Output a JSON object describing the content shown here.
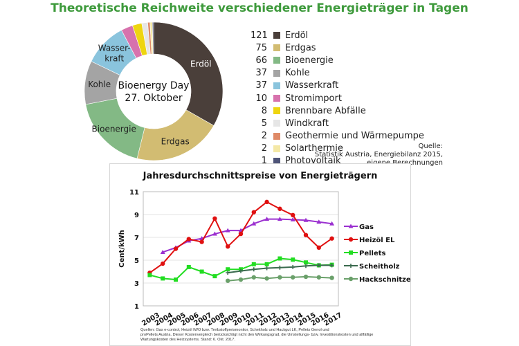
{
  "donut": {
    "title": "Theoretische Reichweite verschiedener Energieträger in Tagen",
    "center_line1": "Bioenergy Day",
    "center_line2": "27. Oktober",
    "source": [
      "Quelle:",
      "Statistik Austria, Energiebilanz 2015,",
      "eigene Berechnungen"
    ]
  },
  "line_chart": {
    "title": "Jahresdurchschnittspreise von Energieträgern",
    "footnote": [
      "Quellen: Gas e-control, Heizöl IWO bzw. Treibstoffpreismonitor, Scheitholz und Hackgut LK, Pellets Genol und",
      "proPellets Austria. Dieser Kostenvergleich berücksichtigt nicht den Wirkungsgrad, die Umstellungs- bzw. Investitionskosten und allfällige",
      "Wartungskosten des Heizsystems. Stand: 6. Okt. 2017."
    ]
  },
  "chart_data": [
    {
      "type": "pie",
      "title": "Theoretische Reichweite verschiedener Energieträger in Tagen",
      "labels": [
        "Erdöl",
        "Erdgas",
        "Bioenergie",
        "Kohle",
        "Wasserkraft",
        "Stromimport",
        "Brennbare Abfälle",
        "Windkraft",
        "Geothermie und Wärmepumpe",
        "Solarthermie",
        "Photovoltaik"
      ],
      "values": [
        121,
        75,
        66,
        37,
        37,
        10,
        8,
        5,
        2,
        2,
        1
      ],
      "colors": [
        "#4a3f3a",
        "#d2bc72",
        "#83b985",
        "#a4a4a4",
        "#8ac4dd",
        "#d772ad",
        "#eed510",
        "#e6e6e6",
        "#df8a67",
        "#f4e8a6",
        "#4e5478"
      ],
      "slice_labels": [
        "Erdöl",
        "Erdgas",
        "Bioenergie",
        "Kohle",
        "Wasser-kraft",
        "",
        "",
        "",
        "",
        "",
        ""
      ],
      "legend": "right"
    },
    {
      "type": "line",
      "title": "Jahresdurchschnittspreise von Energieträgern",
      "ylabel": "Cent/kWh",
      "xlabel": "",
      "x": [
        "2003",
        "2004",
        "2005",
        "2006",
        "2007",
        "2008",
        "2009",
        "2010",
        "2011",
        "2012",
        "2013",
        "2014",
        "2015",
        "2016",
        "2017"
      ],
      "yticks": [
        1,
        3,
        5,
        7,
        9,
        11
      ],
      "ylim": [
        1,
        11
      ],
      "grid": true,
      "legend": "right",
      "series": [
        {
          "name": "Gas",
          "color": "#9b30d0",
          "marker": "triangle",
          "values": [
            null,
            5.7,
            6.1,
            6.7,
            6.9,
            7.3,
            7.6,
            7.6,
            8.2,
            8.6,
            8.6,
            8.55,
            8.5,
            8.35,
            8.2
          ]
        },
        {
          "name": "Heizöl EL",
          "color": "#e01010",
          "marker": "circle",
          "values": [
            3.9,
            4.7,
            6.0,
            6.85,
            6.6,
            8.65,
            6.2,
            7.3,
            9.2,
            10.1,
            9.5,
            8.95,
            7.2,
            6.1,
            6.9
          ]
        },
        {
          "name": "Pellets",
          "color": "#22dd22",
          "marker": "square",
          "values": [
            3.7,
            3.4,
            3.3,
            4.4,
            4.0,
            3.6,
            4.2,
            4.2,
            4.65,
            4.65,
            5.15,
            5.05,
            4.8,
            4.55,
            4.6
          ]
        },
        {
          "name": "Scheitholz",
          "color": "#3a6a4e",
          "marker": "cross",
          "values": [
            null,
            null,
            null,
            null,
            null,
            null,
            3.9,
            4.05,
            4.2,
            4.3,
            4.35,
            4.4,
            4.5,
            4.55,
            4.55
          ]
        },
        {
          "name": "Hackschnitzel",
          "color": "#6aa06a",
          "marker": "circle",
          "values": [
            null,
            null,
            null,
            null,
            null,
            null,
            3.2,
            3.3,
            3.5,
            3.4,
            3.5,
            3.5,
            3.55,
            3.5,
            3.45
          ]
        }
      ]
    }
  ]
}
